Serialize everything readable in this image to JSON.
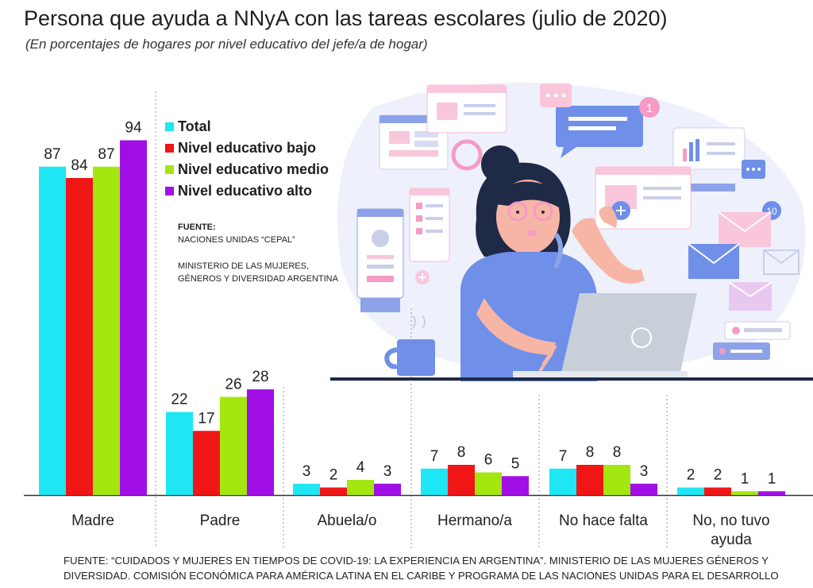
{
  "title": "Persona que ayuda a NNyA con las tareas escolares (julio de 2020)",
  "subtitle": "(En porcentajes de hogares por nivel educativo del jefe/a de hogar)",
  "colors": {
    "total": "#1ee6f2",
    "bajo": "#f01616",
    "medio": "#a4e60f",
    "alto": "#a10fe6"
  },
  "chart_data": {
    "type": "bar",
    "categories": [
      "Madre",
      "Padre",
      "Abuela/o",
      "Hermano/a",
      "No hace falta",
      "No, no tuvo ayuda"
    ],
    "series": [
      {
        "name": "Total",
        "values": [
          87,
          22,
          3,
          7,
          7,
          2
        ]
      },
      {
        "name": "Nivel educativo bajo",
        "values": [
          84,
          17,
          2,
          8,
          8,
          2
        ]
      },
      {
        "name": "Nivel educativo medio",
        "values": [
          87,
          26,
          4,
          6,
          8,
          1
        ]
      },
      {
        "name": "Nivel educativo alto",
        "values": [
          94,
          28,
          3,
          5,
          3,
          1
        ]
      }
    ],
    "ylim": [
      0,
      100
    ],
    "grid": false,
    "legend_position": "top-left"
  },
  "category_label_lines": [
    [
      "Madre"
    ],
    [
      "Padre"
    ],
    [
      "Abuela/o"
    ],
    [
      "Hermano/a"
    ],
    [
      "No hace falta"
    ],
    [
      "No, no tuvo",
      "ayuda"
    ]
  ],
  "source_box": {
    "heading": "FUENTE:",
    "line1": "NACIONES UNIDAS “CEPAL”",
    "line2": "MINISTERIO DE LAS MUJERES,",
    "line3": "GÉNEROS Y DIVERSIDAD ARGENTINA"
  },
  "illustration": {
    "badge_1": "1",
    "badge_10": "10"
  },
  "footer": {
    "line1": "FUENTE: “CUIDADOS Y MUJERES EN TIEMPOS DE COVID-19: LA EXPERIENCIA EN ARGENTINA”. MINISTERIO DE LAS MUJERES GÉNEROS Y",
    "line2": "DIVERSIDAD. COMISIÓN ECONÓMICA PARA AMÉRICA LATINA EN EL CARIBE Y PROGRAMA DE LAS NACIONES UNIDAS PARA EL DESARROLLO"
  }
}
